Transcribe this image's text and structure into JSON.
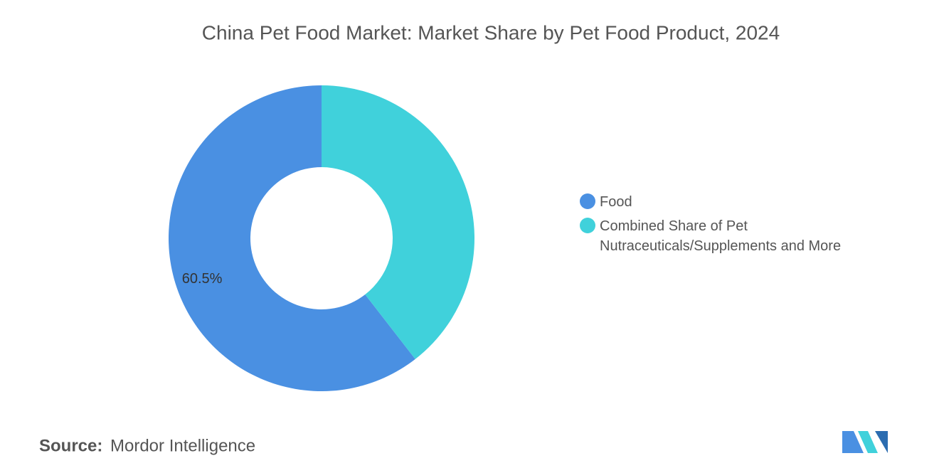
{
  "chart_data": {
    "type": "donut",
    "title": "China Pet Food Market: Market Share by Pet Food Product, 2024",
    "categories": [
      "Food",
      "Combined Share of Pet Nutraceuticals/Supplements and More"
    ],
    "values": [
      60.5,
      39.5
    ],
    "value_labels": [
      "60.5%",
      null
    ],
    "colors": [
      "#4a90e2",
      "#40d1db"
    ],
    "legend_position": "right",
    "source_label": "Source:",
    "source": "Mordor Intelligence"
  }
}
